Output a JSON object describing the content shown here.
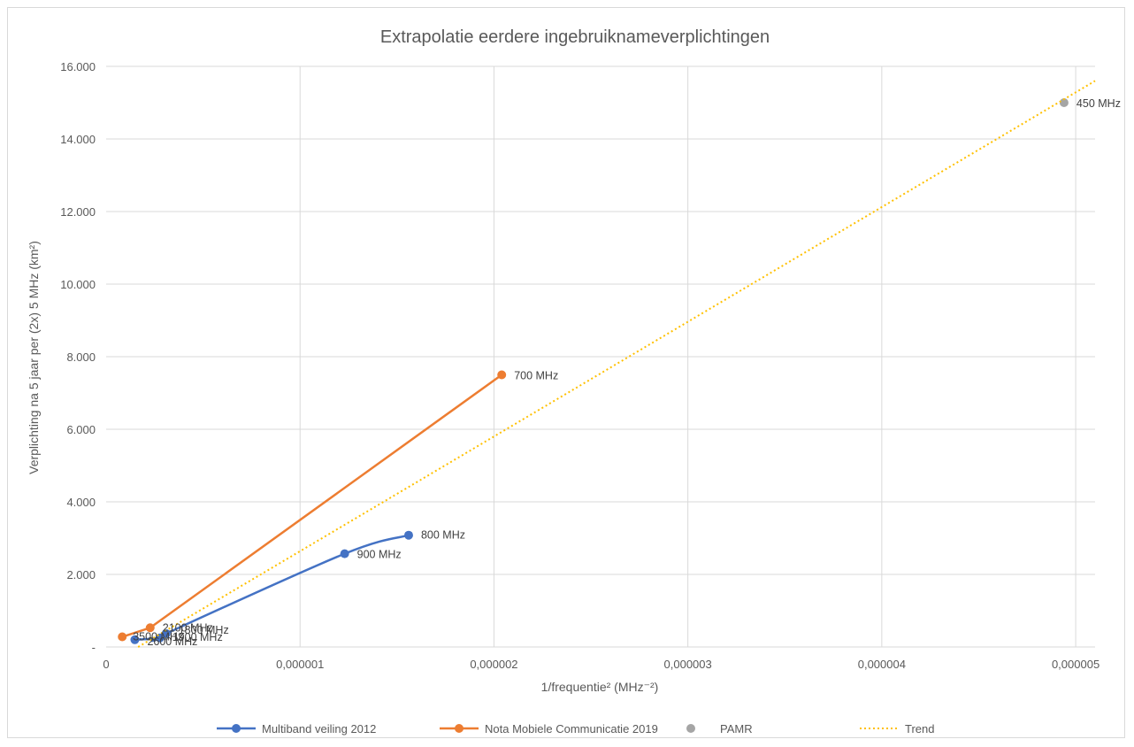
{
  "chart_data": {
    "type": "line",
    "title": "Extrapolatie eerdere ingebruiknameverplichtingen",
    "xlabel": "1/frequentie² (MHz⁻²)",
    "ylabel": "Verplichting na 5 jaar per (2x)  5 MHz (km²)",
    "xlim": [
      0,
      5.1e-06
    ],
    "ylim": [
      0,
      16000
    ],
    "x_ticks": [
      {
        "value": 0,
        "label": "0"
      },
      {
        "value": 1e-06,
        "label": "0,000001"
      },
      {
        "value": 2e-06,
        "label": "0,000002"
      },
      {
        "value": 3e-06,
        "label": "0,000003"
      },
      {
        "value": 4e-06,
        "label": "0,000004"
      },
      {
        "value": 5e-06,
        "label": "0,000005"
      }
    ],
    "y_ticks": [
      {
        "value": 0,
        "label": "-"
      },
      {
        "value": 2000,
        "label": "2.000"
      },
      {
        "value": 4000,
        "label": "4.000"
      },
      {
        "value": 6000,
        "label": "6.000"
      },
      {
        "value": 8000,
        "label": "8.000"
      },
      {
        "value": 10000,
        "label": "10.000"
      },
      {
        "value": 12000,
        "label": "12.000"
      },
      {
        "value": 14000,
        "label": "14.000"
      },
      {
        "value": 16000,
        "label": "16.000"
      }
    ],
    "grid": true,
    "legend_position": "bottom",
    "series": [
      {
        "name": "Multiband veiling 2012",
        "color": "#4472c4",
        "style": "smooth-line-markers",
        "points": [
          {
            "x": 1.48e-07,
            "y": 200,
            "label": "2600 MHz"
          },
          {
            "x": 2.77e-07,
            "y": 250,
            "label": "1900 MHz"
          },
          {
            "x": 3.09e-07,
            "y": 370,
            "label": "1800 MHz"
          },
          {
            "x": 1.23e-06,
            "y": 2570,
            "label": "900 MHz"
          },
          {
            "x": 1.56e-06,
            "y": 3080,
            "label": "800 MHz"
          }
        ]
      },
      {
        "name": "Nota Mobiele Communicatie 2019",
        "color": "#ed7d31",
        "style": "line-markers",
        "points": [
          {
            "x": 8.3e-08,
            "y": 280,
            "label": "3500 MHz"
          },
          {
            "x": 2.27e-07,
            "y": 530,
            "label": "2100 MHz"
          },
          {
            "x": 2.04e-06,
            "y": 7500,
            "label": "700 MHz"
          }
        ]
      },
      {
        "name": "PAMR",
        "color": "#a5a5a5",
        "style": "markers",
        "points": [
          {
            "x": 4.94e-06,
            "y": 15000,
            "label": "450 MHz"
          }
        ]
      },
      {
        "name": "Trend",
        "color": "#ffc000",
        "style": "dotted-line",
        "points": [
          {
            "x": 1.65e-07,
            "y": 0
          },
          {
            "x": 5.1e-06,
            "y": 15600
          }
        ]
      }
    ]
  }
}
